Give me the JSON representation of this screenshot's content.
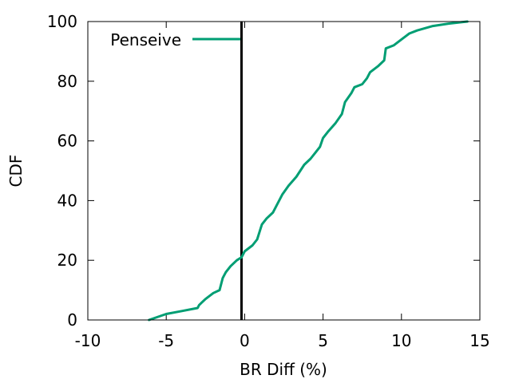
{
  "chart_data": {
    "type": "line",
    "title": "",
    "xlabel": "BR Diff (%)",
    "ylabel": "CDF",
    "xlim": [
      -10,
      15
    ],
    "ylim": [
      0,
      100
    ],
    "xticks": [
      -10,
      -5,
      0,
      5,
      10,
      15
    ],
    "xtick_labels": [
      "-10",
      "-5",
      "0",
      "5",
      "10",
      "15"
    ],
    "yticks": [
      0,
      20,
      40,
      60,
      80,
      100
    ],
    "ytick_labels": [
      "0",
      "20",
      "40",
      "60",
      "80",
      "100"
    ],
    "grid": false,
    "legend_position": "top-left",
    "reference_line": {
      "x": -0.2,
      "color": "#000000"
    },
    "series": [
      {
        "name": "Penseive",
        "color": "#009e73",
        "x": [
          -6.1,
          -5.0,
          -4.0,
          -3.0,
          -2.9,
          -2.5,
          -2.0,
          -1.6,
          -1.4,
          -1.2,
          -0.9,
          -0.5,
          -0.2,
          0.0,
          0.5,
          0.8,
          1.1,
          1.4,
          1.8,
          2.2,
          2.4,
          2.8,
          3.3,
          3.8,
          4.2,
          4.5,
          4.8,
          5.0,
          5.3,
          5.8,
          6.2,
          6.4,
          6.8,
          7.0,
          7.5,
          7.8,
          8.0,
          8.5,
          8.9,
          9.0,
          9.5,
          10.0,
          10.5,
          11.0,
          12.0,
          13.0,
          14.2
        ],
        "y": [
          0,
          2,
          3,
          4,
          5,
          7,
          9,
          10,
          14,
          16,
          18,
          20,
          21,
          23,
          25,
          27,
          32,
          34,
          36,
          40,
          42,
          45,
          48,
          52,
          54,
          56,
          58,
          61,
          63,
          66,
          69,
          73,
          76,
          78,
          79,
          81,
          83,
          85,
          87,
          91,
          92,
          94,
          96,
          97,
          98.5,
          99.3,
          100
        ]
      }
    ]
  }
}
